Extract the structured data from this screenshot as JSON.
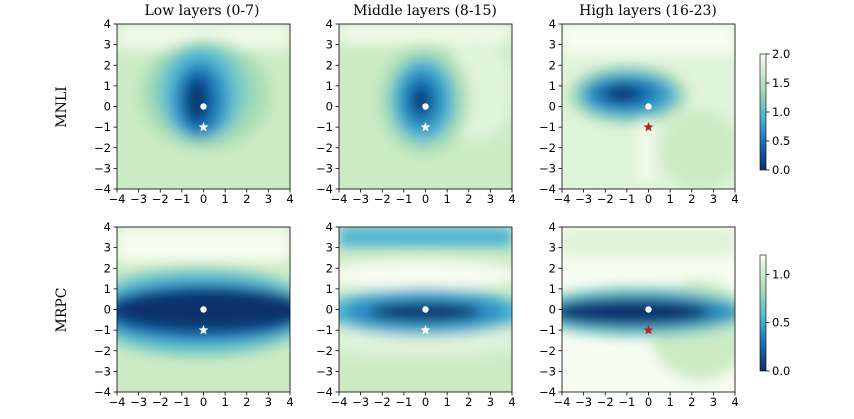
{
  "chart_data": [
    {
      "type": "heatmap",
      "row": "MNLI",
      "title": "Low layers (0-7)",
      "x_range": [
        -4,
        4
      ],
      "y_range": [
        -4,
        4
      ],
      "x_ticks": [
        -4,
        -3,
        -2,
        -1,
        0,
        1,
        2,
        3,
        4
      ],
      "y_ticks": [
        -4,
        -3,
        -2,
        -1,
        0,
        1,
        2,
        3,
        4
      ],
      "x_tick_labels": [
        "−4",
        "−3",
        "−2",
        "−1",
        "0",
        "1",
        "2",
        "3",
        "4"
      ],
      "y_tick_labels": [
        "−4",
        "−3",
        "−2",
        "−1",
        "0",
        "1",
        "2",
        "3",
        "4"
      ],
      "minimum_marker": {
        "x": 0,
        "y": 0,
        "shape": "circle",
        "color": "#ffffff"
      },
      "star_marker": {
        "x": 0,
        "y": -1,
        "shape": "star",
        "color": "#ffffff"
      }
    },
    {
      "type": "heatmap",
      "row": "MNLI",
      "title": "Middle layers (8-15)",
      "x_range": [
        -4,
        4
      ],
      "y_range": [
        -4,
        4
      ],
      "x_ticks": [
        -4,
        -3,
        -2,
        -1,
        0,
        1,
        2,
        3,
        4
      ],
      "y_ticks": [
        -4,
        -3,
        -2,
        -1,
        0,
        1,
        2,
        3,
        4
      ],
      "x_tick_labels": [
        "−4",
        "−3",
        "−2",
        "−1",
        "0",
        "1",
        "2",
        "3",
        "4"
      ],
      "y_tick_labels": [
        "−4",
        "−3",
        "−2",
        "−1",
        "0",
        "1",
        "2",
        "3",
        "4"
      ],
      "minimum_marker": {
        "x": 0,
        "y": 0,
        "shape": "circle",
        "color": "#ffffff"
      },
      "star_marker": {
        "x": 0,
        "y": -1,
        "shape": "star",
        "color": "#ffffff"
      }
    },
    {
      "type": "heatmap",
      "row": "MNLI",
      "title": "High layers (16-23)",
      "x_range": [
        -4,
        4
      ],
      "y_range": [
        -4,
        4
      ],
      "x_ticks": [
        -4,
        -3,
        -2,
        -1,
        0,
        1,
        2,
        3,
        4
      ],
      "y_ticks": [
        -4,
        -3,
        -2,
        -1,
        0,
        1,
        2,
        3,
        4
      ],
      "x_tick_labels": [
        "−4",
        "−3",
        "−2",
        "−1",
        "0",
        "1",
        "2",
        "3",
        "4"
      ],
      "y_tick_labels": [
        "−4",
        "−3",
        "−2",
        "−1",
        "0",
        "1",
        "2",
        "3",
        "4"
      ],
      "minimum_marker": {
        "x": 0,
        "y": 0,
        "shape": "circle",
        "color": "#ffffff"
      },
      "star_marker": {
        "x": 0,
        "y": -1,
        "shape": "star",
        "color": "#b22222"
      }
    },
    {
      "type": "heatmap",
      "row": "MRPC",
      "title": "",
      "x_range": [
        -4,
        4
      ],
      "y_range": [
        -4,
        4
      ],
      "x_ticks": [
        -4,
        -3,
        -2,
        -1,
        0,
        1,
        2,
        3,
        4
      ],
      "y_ticks": [
        -4,
        -3,
        -2,
        -1,
        0,
        1,
        2,
        3,
        4
      ],
      "x_tick_labels": [
        "−4",
        "−3",
        "−2",
        "−1",
        "0",
        "1",
        "2",
        "3",
        "4"
      ],
      "y_tick_labels": [
        "−4",
        "−3",
        "−2",
        "−1",
        "0",
        "1",
        "2",
        "3",
        "4"
      ],
      "minimum_marker": {
        "x": 0,
        "y": 0,
        "shape": "circle",
        "color": "#ffffff"
      },
      "star_marker": {
        "x": 0,
        "y": -1,
        "shape": "star",
        "color": "#ffffff"
      }
    },
    {
      "type": "heatmap",
      "row": "MRPC",
      "title": "",
      "x_range": [
        -4,
        4
      ],
      "y_range": [
        -4,
        4
      ],
      "x_ticks": [
        -4,
        -3,
        -2,
        -1,
        0,
        1,
        2,
        3,
        4
      ],
      "y_ticks": [
        -4,
        -3,
        -2,
        -1,
        0,
        1,
        2,
        3,
        4
      ],
      "x_tick_labels": [
        "−4",
        "−3",
        "−2",
        "−1",
        "0",
        "1",
        "2",
        "3",
        "4"
      ],
      "y_tick_labels": [
        "−4",
        "−3",
        "−2",
        "−1",
        "0",
        "1",
        "2",
        "3",
        "4"
      ],
      "minimum_marker": {
        "x": 0,
        "y": 0,
        "shape": "circle",
        "color": "#ffffff"
      },
      "star_marker": {
        "x": 0,
        "y": -1,
        "shape": "star",
        "color": "#ffffff"
      }
    },
    {
      "type": "heatmap",
      "row": "MRPC",
      "title": "",
      "x_range": [
        -4,
        4
      ],
      "y_range": [
        -4,
        4
      ],
      "x_ticks": [
        -4,
        -3,
        -2,
        -1,
        0,
        1,
        2,
        3,
        4
      ],
      "y_ticks": [
        -4,
        -3,
        -2,
        -1,
        0,
        1,
        2,
        3,
        4
      ],
      "x_tick_labels": [
        "−4",
        "−3",
        "−2",
        "−1",
        "0",
        "1",
        "2",
        "3",
        "4"
      ],
      "y_tick_labels": [
        "−4",
        "−3",
        "−2",
        "−1",
        "0",
        "1",
        "2",
        "3",
        "4"
      ],
      "minimum_marker": {
        "x": 0,
        "y": 0,
        "shape": "circle",
        "color": "#ffffff"
      },
      "star_marker": {
        "x": 0,
        "y": -1,
        "shape": "star",
        "color": "#b22222"
      }
    }
  ],
  "row_labels": [
    "MNLI",
    "MRPC"
  ],
  "colorbars": [
    {
      "row": "MNLI",
      "range": [
        0.0,
        2.0
      ],
      "ticks": [
        0.0,
        0.5,
        1.0,
        1.5,
        2.0
      ],
      "tick_labels": [
        "0.0",
        "0.5",
        "1.0",
        "1.5",
        "2.0"
      ]
    },
    {
      "row": "MRPC",
      "range": [
        0.0,
        1.2
      ],
      "ticks": [
        0.0,
        0.5,
        1.0
      ],
      "tick_labels": [
        "0.0",
        "0.5",
        "1.0"
      ]
    }
  ],
  "colors": {
    "dark": "#08306b",
    "mid_dark": "#1f78b4",
    "mid": "#4eb3d3",
    "light": "#a8ddb5",
    "pale": "#e0f3db",
    "white": "#f7fcf0",
    "red_star": "#b22222"
  }
}
